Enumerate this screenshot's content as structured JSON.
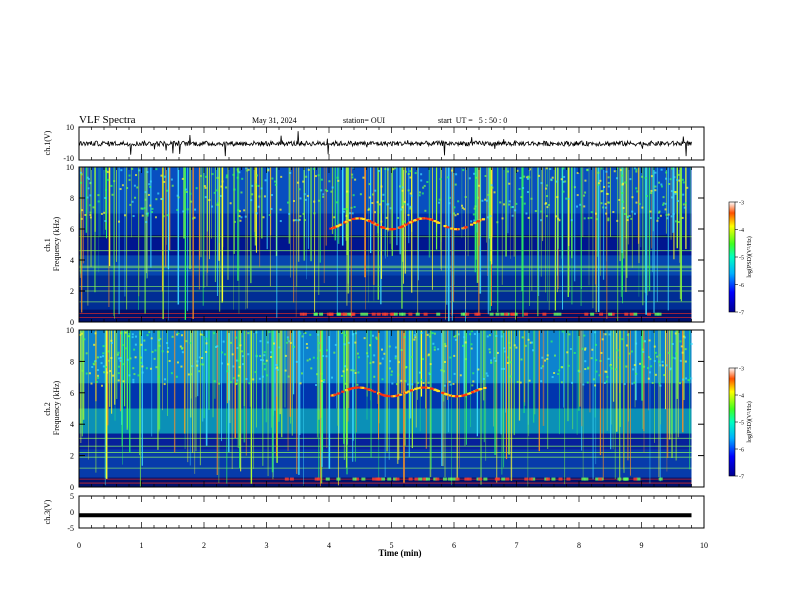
{
  "header": {
    "title": "VLF Spectra",
    "date": "May 31, 2024",
    "station": "station= OUI",
    "start": "start  UT =   5 : 50 : 0"
  },
  "chart_data": [
    {
      "type": "line",
      "ylabel": "ch.1(V)",
      "ylim": [
        -10,
        10
      ],
      "yticks": [
        "10",
        "-10"
      ],
      "note": "noisy waveform around zero with occasional spikes"
    },
    {
      "type": "heatmap",
      "ylabel": "ch.1\nFrequency (kHz)",
      "ylim": [
        0,
        10
      ],
      "yticks": [
        "0",
        "2",
        "4",
        "6",
        "8",
        "10"
      ],
      "xlim": [
        0,
        10
      ],
      "colorbar": {
        "label": "log(PSD)(V²/Hz)",
        "range": [
          -7,
          -3
        ],
        "ticks": [
          "-3",
          "-4",
          "-5",
          "-6",
          "-7"
        ]
      },
      "features": {
        "tone_band_kHz": [
          6,
          7
        ],
        "tone_time_min": [
          4.0,
          6.5
        ]
      }
    },
    {
      "type": "heatmap",
      "ylabel": "ch.2\nFrequency (kHz)",
      "ylim": [
        0,
        10
      ],
      "yticks": [
        "0",
        "2",
        "4",
        "6",
        "8",
        "10"
      ],
      "xlim": [
        0,
        10
      ],
      "colorbar": {
        "label": "log(PSD)(V²/Hz)",
        "range": [
          -7,
          -3
        ],
        "ticks": [
          "-3",
          "-4",
          "-5",
          "-6",
          "-7"
        ]
      },
      "features": {
        "tone_band_kHz": [
          5.8,
          6.6
        ],
        "tone_time_min": [
          4.0,
          6.5
        ]
      }
    },
    {
      "type": "line",
      "ylabel": "ch.3(V)",
      "ylim": [
        -5,
        5
      ],
      "yticks": [
        "5",
        "0",
        "-5"
      ],
      "values_constant": -1
    }
  ],
  "xaxis": {
    "label": "Time (min)",
    "range": [
      0,
      10
    ],
    "ticks": [
      "0",
      "1",
      "2",
      "3",
      "4",
      "5",
      "6",
      "7",
      "8",
      "9",
      "10"
    ],
    "data_end_min": 9.8
  }
}
